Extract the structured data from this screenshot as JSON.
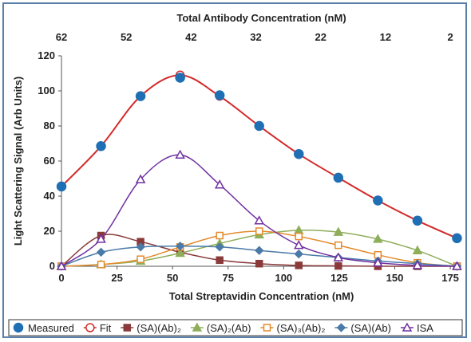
{
  "chart_data": {
    "type": "line",
    "title": "",
    "xlabel": "Total Streptavidin Concentration (nM)",
    "x2label": "Total Antibody Concentration (nM)",
    "ylabel": "Light Scattering Signal (Arb Units)",
    "xlim": [
      0,
      180
    ],
    "ylim": [
      0,
      120
    ],
    "xticks": [
      0,
      25,
      50,
      75,
      100,
      125,
      150,
      175
    ],
    "yticks": [
      0,
      20,
      40,
      60,
      80,
      100,
      120
    ],
    "x2ticks": [
      62,
      52,
      42,
      32,
      22,
      12,
      2
    ],
    "grid": false,
    "legend_position": "bottom",
    "series": [
      {
        "name": "Measured",
        "style": "markers",
        "marker": "circle-filled",
        "color": "#1f6fb5",
        "x": [
          0,
          17.8,
          35.6,
          53.4,
          71.2,
          89,
          106.8,
          124.6,
          142.4,
          160.2,
          178
        ],
        "y": [
          45.5,
          68.5,
          97,
          107.5,
          97.5,
          80,
          64,
          50.5,
          37.5,
          26,
          16
        ]
      },
      {
        "name": "Fit",
        "style": "line-markers",
        "marker": "circle-open",
        "color": "#d42a2a",
        "x": [
          0,
          17.8,
          35.6,
          53.4,
          71.2,
          89,
          106.8,
          124.6,
          142.4,
          160.2,
          178
        ],
        "y": [
          45.5,
          68.5,
          97,
          109,
          97,
          80,
          64,
          50.5,
          37.5,
          26,
          16
        ]
      },
      {
        "name": "(SA)(Ab)₂",
        "style": "line-markers",
        "marker": "square-filled",
        "color": "#8b3a3a",
        "x": [
          0,
          17.8,
          35.6,
          53.4,
          71.2,
          89,
          106.8,
          124.6,
          142.4,
          160.2,
          178
        ],
        "y": [
          0,
          17.5,
          14,
          8,
          3.5,
          1.5,
          0.5,
          0.2,
          0,
          0,
          0
        ]
      },
      {
        "name": "(SA)₂(Ab)",
        "style": "line-markers",
        "marker": "triangle-filled",
        "color": "#8fae5a",
        "x": [
          0,
          17.8,
          35.6,
          53.4,
          71.2,
          89,
          106.8,
          124.6,
          142.4,
          160.2,
          178
        ],
        "y": [
          0,
          1,
          3,
          7.5,
          13,
          18,
          20.5,
          19.5,
          15.5,
          9,
          0
        ]
      },
      {
        "name": "(SA)₃(Ab)₂",
        "style": "line-markers",
        "marker": "square-open",
        "color": "#e38a2c",
        "x": [
          0,
          17.8,
          35.6,
          53.4,
          71.2,
          89,
          106.8,
          124.6,
          142.4,
          160.2,
          178
        ],
        "y": [
          0,
          1,
          4,
          11,
          17.5,
          20,
          17,
          12,
          6.5,
          2,
          0
        ]
      },
      {
        "name": "(SA)(Ab)",
        "style": "line-markers",
        "marker": "diamond-filled",
        "color": "#4a7aa8",
        "x": [
          0,
          17.8,
          35.6,
          53.4,
          71.2,
          89,
          106.8,
          124.6,
          142.4,
          160.2,
          178
        ],
        "y": [
          0,
          8,
          11,
          11.5,
          11,
          9,
          7,
          5,
          3,
          1.5,
          0
        ]
      },
      {
        "name": "ISA",
        "style": "line-markers",
        "marker": "triangle-open",
        "color": "#7030a0",
        "x": [
          0,
          17.8,
          35.6,
          53.4,
          71.2,
          89,
          106.8,
          124.6,
          142.4,
          160.2,
          178
        ],
        "y": [
          0,
          15.5,
          49.5,
          63.5,
          46.5,
          26,
          12,
          5,
          2,
          0.5,
          0
        ]
      }
    ]
  }
}
